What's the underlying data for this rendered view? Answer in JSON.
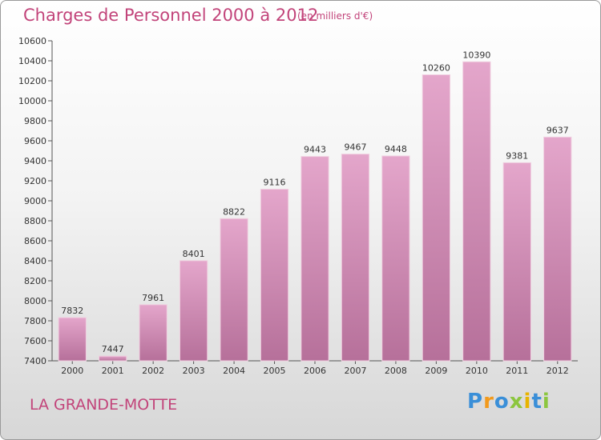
{
  "title": "Charges de Personnel 2000 à 2012",
  "subtitle": "(en milliers d'€)",
  "town": "LA GRANDE-MOTTE",
  "logo": {
    "letters": [
      "P",
      "r",
      "o",
      "x",
      "i",
      "t",
      "i"
    ],
    "colors": [
      "#3a8fd8",
      "#f29a1c",
      "#3a8fd8",
      "#8cc63f",
      "#e8b400",
      "#3a8fd8",
      "#8cc63f"
    ]
  },
  "colors": {
    "bar_top": "#e4a6cb",
    "bar_bottom": "#b6709a",
    "text": "#c2447a",
    "axis": "#555555"
  },
  "chart_data": {
    "type": "bar",
    "categories": [
      "2000",
      "2001",
      "2002",
      "2003",
      "2004",
      "2005",
      "2006",
      "2007",
      "2008",
      "2009",
      "2010",
      "2011",
      "2012"
    ],
    "values": [
      7832,
      7447,
      7961,
      8401,
      8822,
      9116,
      9443,
      9467,
      9448,
      10260,
      10390,
      9381,
      9637
    ],
    "ylim": [
      7400,
      10600
    ],
    "yticks": [
      7400,
      7600,
      7800,
      8000,
      8200,
      8400,
      8600,
      8800,
      9000,
      9200,
      9400,
      9600,
      9800,
      10000,
      10200,
      10400,
      10600
    ],
    "grid": false,
    "legend": "none"
  }
}
